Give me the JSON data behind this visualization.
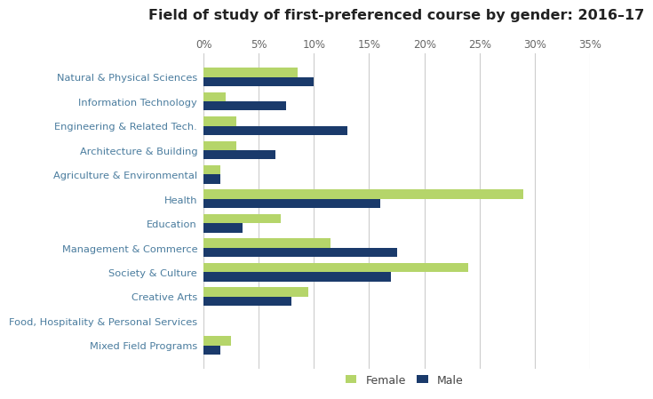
{
  "title": "Field of study of first-preferenced course by gender: 2016–17",
  "categories": [
    "Natural & Physical Sciences",
    "Information Technology",
    "Engineering & Related Tech.",
    "Architecture & Building",
    "Agriculture & Environmental",
    "Health",
    "Education",
    "Management & Commerce",
    "Society & Culture",
    "Creative Arts",
    "Food, Hospitality & Personal Services",
    "Mixed Field Programs"
  ],
  "female": [
    8.5,
    2.0,
    3.0,
    3.0,
    1.5,
    29.0,
    7.0,
    11.5,
    24.0,
    9.5,
    0.0,
    2.5
  ],
  "male": [
    10.0,
    7.5,
    13.0,
    6.5,
    1.5,
    16.0,
    3.5,
    17.5,
    17.0,
    8.0,
    0.0,
    1.5
  ],
  "female_color": "#b5d56a",
  "male_color": "#1a3a6b",
  "xlim": [
    0,
    35
  ],
  "xtick_values": [
    0,
    5,
    10,
    15,
    20,
    25,
    30,
    35
  ],
  "xtick_labels": [
    "0%",
    "5%",
    "10%",
    "15%",
    "20%",
    "25%",
    "30%",
    "35%"
  ],
  "bar_height": 0.38,
  "label_color": "#4a7c9e",
  "legend_labels": [
    "Female",
    "Male"
  ],
  "background_color": "#ffffff",
  "grid_color": "#cccccc"
}
